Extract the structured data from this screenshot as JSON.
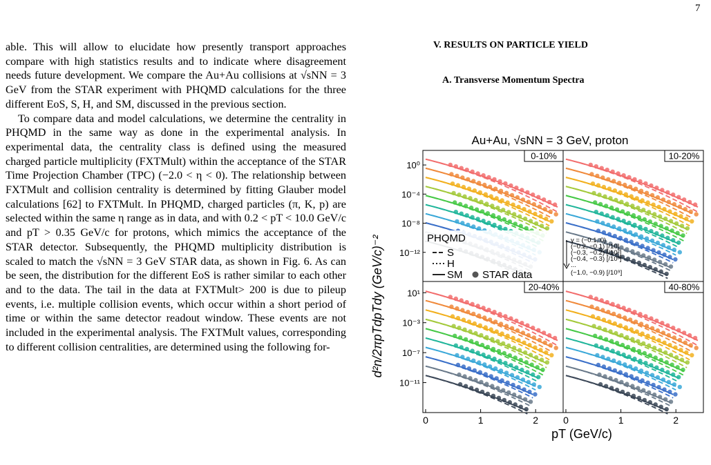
{
  "page_number": "7",
  "left_column": {
    "paragraph1": "able. This will allow to elucidate how presently transport approaches compare with high statistics results and to indicate where disagreement needs future development. We compare the Au+Au collisions at √sNN = 3 GeV from the STAR experiment with PHQMD calculations for the three different EoS, S, H, and SM, discussed in the previous section.",
    "paragraph2": "To compare data and model calculations, we determine the centrality in PHQMD in the same way as done in the experimental analysis. In experimental data, the centrality class is defined using the measured charged particle multiplicity (FXTMult) within the acceptance of the STAR Time Projection Chamber (TPC) (−2.0 < η < 0). The relationship between FXTMult and collision centrality is determined by fitting Glauber model calculations [62] to FXTMult. In PHQMD, charged particles (π, K, p) are selected within the same η range as in data, and with 0.2 < pT < 10.0 GeV/c and pT > 0.35 GeV/c for protons, which mimics the acceptance of the STAR detector. Subsequently, the PHQMD multiplicity distribution is scaled to match the √sNN = 3 GeV STAR data, as shown in Fig. 6. As can be seen, the distribution for the different EoS is rather similar to each other and to the data. The tail in the data at FXTMult> 200 is due to pileup events, i.e. multiple collision events, which occur within a short period of time or within the same detector readout window. These events are not included in the experimental analysis. The FXTMult values, corresponding to different collision centralities, are determined using the following for-"
  },
  "section_heading": "V.   RESULTS ON PARTICLE YIELD",
  "subsection_heading": "A.   Transverse Momentum Spectra",
  "figure": {
    "title": "Au+Au, √sNN = 3 GeV, proton",
    "ylabel": "d²n/2πpTdpTdy (GeV/c)⁻²",
    "xlabel": "pT (GeV/c)",
    "legend": {
      "header": "PHQMD",
      "entries": [
        "S",
        "H",
        "SM"
      ],
      "data_label": "STAR data",
      "rapidity_header": "y = (−0.1, 0)",
      "rapidity_bins": [
        "(−0.2, −0.1) [/10]",
        "(−0.3, −0.2) [/10²]",
        "(−0.4, −0.3) [/10³]",
        "...",
        "(−1.0, −0.9) [/10⁹]"
      ]
    },
    "colors": [
      "#f26d6d",
      "#f08a3c",
      "#f2b01e",
      "#a3c93a",
      "#45c845",
      "#1fb59a",
      "#3aa8d8",
      "#3a6fc8",
      "#6a7a8a",
      "#3a4656"
    ]
  },
  "chart_data": {
    "type": "scatter",
    "title": "Au+Au, √sNN = 3 GeV, proton",
    "xlabel": "pT (GeV/c)",
    "ylabel": "d²n/2πpTdpTdy (GeV/c)⁻²",
    "x_ticks": [
      "0",
      "1",
      "2"
    ],
    "panels": [
      {
        "label": "0-10%",
        "xlim": [
          -0.05,
          2.5
        ],
        "ylim": [
          -16,
          2
        ],
        "ytick_labels": [
          "10⁰",
          "10⁻⁴",
          "10⁻⁸",
          "10⁻¹²"
        ],
        "ytick_values": [
          0,
          -4,
          -8,
          -12
        ]
      },
      {
        "label": "10-20%",
        "xlim": [
          -0.05,
          2.5
        ],
        "ylim": [
          -16,
          2
        ],
        "ytick_labels": [],
        "ytick_values": []
      },
      {
        "label": "20-40%",
        "xlim": [
          -0.05,
          2.5
        ],
        "ylim": [
          -15,
          2.5
        ],
        "ytick_labels": [
          "10¹",
          "10⁻³",
          "10⁻⁷",
          "10⁻¹¹"
        ],
        "ytick_values": [
          1,
          -3,
          -7,
          -11
        ]
      },
      {
        "label": "40-80%",
        "xlim": [
          -0.05,
          2.5
        ],
        "ylim": [
          -15,
          2.5
        ],
        "ytick_labels": [],
        "ytick_values": []
      }
    ],
    "series_note": "10 rapidity bins y=(-0.1,0) ... (-1.0,-0.9), scaled by 1/10^k; lines = PHQMD S/H/SM, markers = STAR data"
  }
}
